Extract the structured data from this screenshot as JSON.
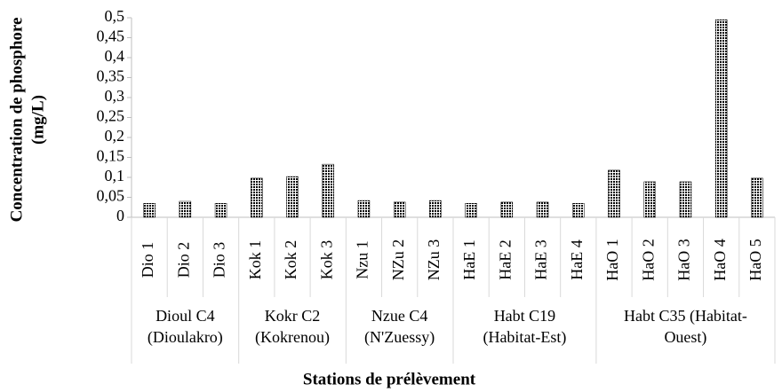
{
  "chart_data": {
    "type": "bar",
    "ylabel": [
      "Concentration de phosphore",
      "(mg/L)"
    ],
    "xlabel": "Stations de prélèvement",
    "color": "#000000",
    "ylim": [
      0,
      0.5
    ],
    "yticks": [
      0,
      {
        "value": 0.05,
        "label": "0,05"
      },
      {
        "value": 0.1,
        "label": "0,1"
      },
      {
        "value": 0.15,
        "label": "0,15"
      },
      {
        "value": 0.2,
        "label": "0,2"
      },
      {
        "value": 0.25,
        "label": "0,25"
      },
      {
        "value": 0.3,
        "label": "0,3"
      },
      {
        "value": 0.35,
        "label": "0,35"
      },
      {
        "value": 0.4,
        "label": "0,4"
      },
      {
        "value": 0.45,
        "label": "0,45"
      },
      {
        "value": 0.5,
        "label": "0,5"
      }
    ],
    "groups": [
      {
        "name": [
          "Dioul C4",
          "(Dioulakro)"
        ],
        "categories": [
          "Dio 1",
          "Dio 2",
          "Dio 3"
        ],
        "values": [
          0.035,
          0.04,
          0.035
        ]
      },
      {
        "name": [
          "Kokr C2",
          "(Kokrenou)"
        ],
        "categories": [
          "Kok 1",
          "Kok 2",
          "Kok 3"
        ],
        "values": [
          0.098,
          0.102,
          0.133
        ]
      },
      {
        "name": [
          "Nzue C4",
          "(N'Zuessy)"
        ],
        "categories": [
          "Nzu 1",
          "NZu 2",
          "NZu 3"
        ],
        "values": [
          0.042,
          0.038,
          0.042
        ]
      },
      {
        "name": [
          "Habt C19",
          "(Habitat-Est)"
        ],
        "categories": [
          "HaE 1",
          "HaE 2",
          "HaE 3",
          "HaE 4"
        ],
        "values": [
          0.035,
          0.038,
          0.038,
          0.035
        ]
      },
      {
        "name": [
          "Habt C35 (Habitat-",
          "Ouest)"
        ],
        "categories": [
          "HaO 1",
          "HaO 2",
          "HaO 3",
          "HaO 4",
          "HaO 5"
        ],
        "values": [
          0.118,
          0.089,
          0.089,
          0.495,
          0.098
        ]
      }
    ]
  }
}
